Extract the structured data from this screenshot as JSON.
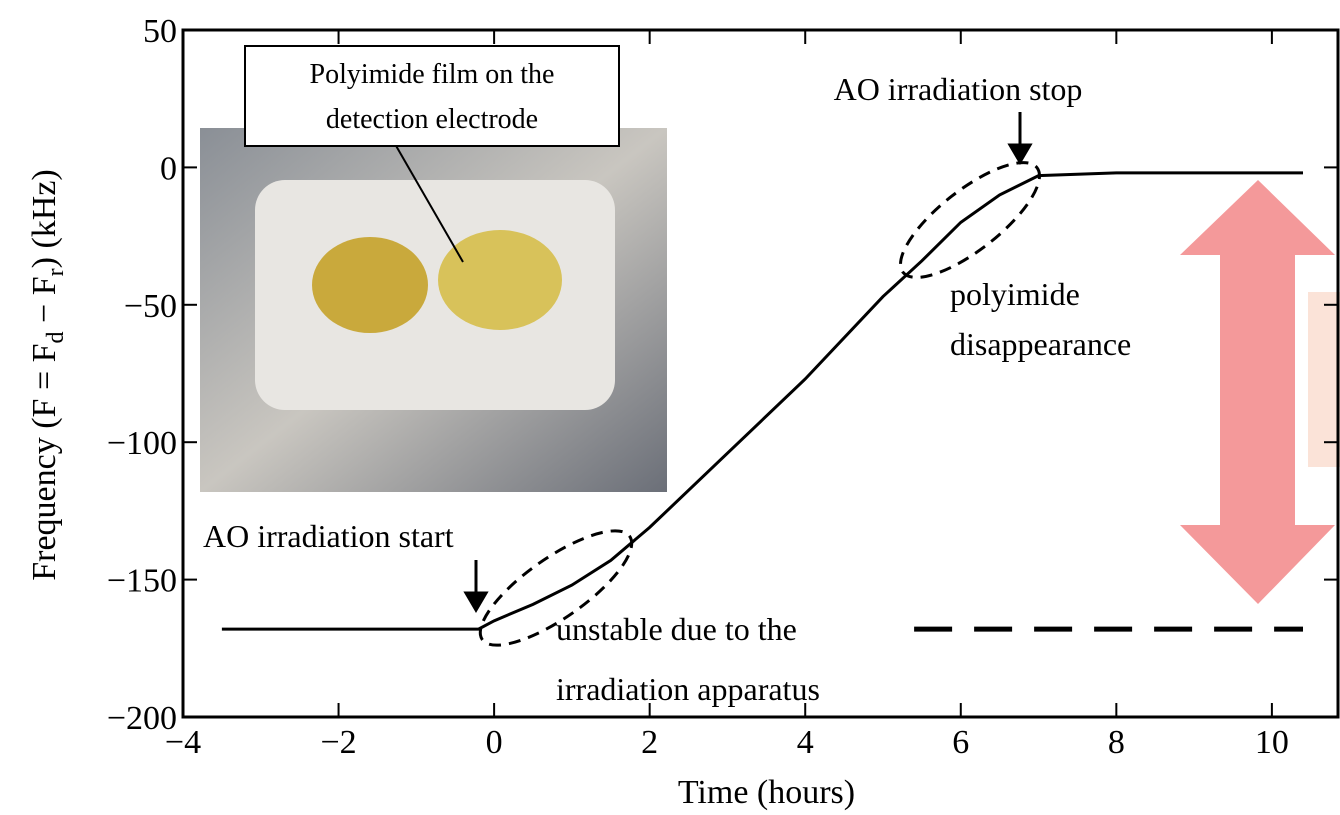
{
  "chart_data": {
    "type": "line",
    "xlabel": "Time (hours)",
    "ylabel_parts": [
      "Frequency (F = F",
      "d",
      " − F",
      "r",
      ") (kHz)"
    ],
    "x": [
      -3.5,
      -0.2,
      0,
      0.5,
      1,
      1.5,
      2,
      3,
      4,
      5,
      5.5,
      6,
      6.5,
      7,
      8,
      10.4
    ],
    "values": [
      -168,
      -168,
      -165,
      -159,
      -152,
      -143,
      -131,
      -104,
      -77,
      -47,
      -34,
      -20,
      -10,
      -3,
      -2,
      -2
    ],
    "color": "#000000",
    "xlim": [
      -4,
      10.85
    ],
    "ylim": [
      -200,
      50
    ],
    "xticks": [
      {
        "value": -4,
        "label": "−4"
      },
      {
        "value": -2,
        "label": "−2"
      },
      0,
      2,
      4,
      6,
      8,
      10
    ],
    "yticks": [
      {
        "value": -200,
        "label": "−200"
      },
      {
        "value": -150,
        "label": "−150"
      },
      {
        "value": -100,
        "label": "−100"
      },
      {
        "value": -50,
        "label": "−50"
      },
      0,
      50
    ],
    "dashed_line": {
      "x": [
        5.4,
        10.4
      ],
      "y": -168
    },
    "annotations": [
      "Polyimide film on the",
      "detection electrode",
      "AO irradiation stop",
      "polyimide",
      "disappearance",
      "AO irradiation start",
      "unstable due to the",
      "irradiation apparatus"
    ]
  }
}
